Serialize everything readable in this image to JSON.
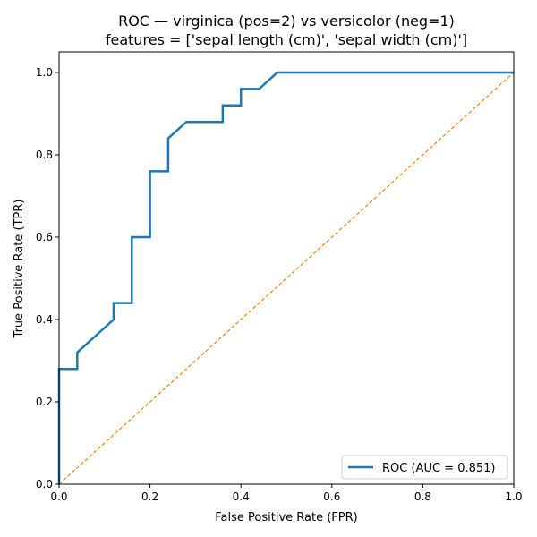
{
  "chart_data": {
    "type": "line",
    "title": "ROC — virginica (pos=2) vs versicolor (neg=1)",
    "subtitle": "features = ['sepal length (cm)', 'sepal width (cm)']",
    "xlabel": "False Positive Rate (FPR)",
    "ylabel": "True Positive Rate (TPR)",
    "xlim": [
      0,
      1
    ],
    "ylim": [
      0,
      1.05
    ],
    "x_ticks": [
      "0.0",
      "0.2",
      "0.4",
      "0.6",
      "0.8",
      "1.0"
    ],
    "y_ticks": [
      "0.0",
      "0.2",
      "0.4",
      "0.6",
      "0.8",
      "1.0"
    ],
    "grid": false,
    "legend_position": "lower-right",
    "series": [
      {
        "name": "ROC (AUC = 0.851)",
        "color": "#1f77b4",
        "style": "solid",
        "x": [
          0.0,
          0.0,
          0.0,
          0.04,
          0.04,
          0.12,
          0.12,
          0.16,
          0.16,
          0.2,
          0.2,
          0.24,
          0.24,
          0.28,
          0.36,
          0.36,
          0.4,
          0.4,
          0.44,
          0.48,
          1.0
        ],
        "y": [
          0.0,
          0.0,
          0.28,
          0.28,
          0.32,
          0.4,
          0.44,
          0.44,
          0.6,
          0.6,
          0.76,
          0.76,
          0.84,
          0.88,
          0.88,
          0.92,
          0.92,
          0.96,
          0.96,
          1.0,
          1.0
        ]
      },
      {
        "name": "",
        "color": "#ff7f0e",
        "style": "dashed",
        "x": [
          0,
          1
        ],
        "y": [
          0,
          1
        ]
      }
    ]
  }
}
